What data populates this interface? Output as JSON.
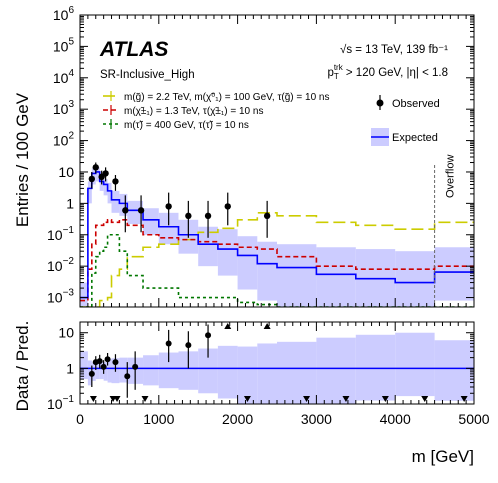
{
  "chart_data": {
    "type": "histogram",
    "xlabel": "m [GeV]",
    "x_ticks": [
      "0",
      "1000",
      "2000",
      "3000",
      "4000",
      "5000"
    ],
    "xlim": [
      0,
      5000
    ],
    "overflow_label": "Overflow",
    "overflow_edge": 4500,
    "bin_edges": [
      0,
      100,
      150,
      200,
      250,
      300,
      350,
      400,
      500,
      600,
      800,
      1000,
      1250,
      1500,
      1750,
      2000,
      2250,
      2500,
      3000,
      3500,
      4000,
      4500,
      5000
    ],
    "top": {
      "ylabel": "Entries / 100 GeV",
      "ylim": [
        0.0005,
        1000000
      ],
      "yscale": "log",
      "y_ticks": [
        {
          "v": 0.001,
          "base": "10",
          "exp": "−3"
        },
        {
          "v": 0.01,
          "base": "10",
          "exp": "−2"
        },
        {
          "v": 0.1,
          "base": "10",
          "exp": "−1"
        },
        {
          "v": 1,
          "base": "1",
          "exp": ""
        },
        {
          "v": 10,
          "base": "10",
          "exp": ""
        },
        {
          "v": 100,
          "base": "10",
          "exp": "2"
        },
        {
          "v": 1000,
          "base": "10",
          "exp": "3"
        },
        {
          "v": 10000,
          "base": "10",
          "exp": "4"
        },
        {
          "v": 100000,
          "base": "10",
          "exp": "5"
        },
        {
          "v": 1000000,
          "base": "10",
          "exp": "6"
        }
      ],
      "expected": [
        0.001,
        3,
        9,
        10,
        5,
        4,
        2.5,
        1.3,
        1,
        0.6,
        0.3,
        0.18,
        0.1,
        0.05,
        0.035,
        0.022,
        0.012,
        0.009,
        0.0055,
        0.004,
        0.003,
        0.0065
      ],
      "expected_band_lo": [
        0.0005,
        1,
        4,
        5,
        2.5,
        1.8,
        1,
        0.5,
        0.4,
        0.22,
        0.1,
        0.05,
        0.025,
        0.01,
        0.005,
        0.0018,
        0.0008,
        0.0005,
        0.0005,
        0.0005,
        0.0005,
        0.0008
      ],
      "expected_band_hi": [
        0.003,
        5,
        13,
        14,
        7.5,
        6,
        4.5,
        2.5,
        2,
        1.2,
        0.7,
        0.5,
        0.3,
        0.18,
        0.15,
        0.09,
        0.06,
        0.05,
        0.04,
        0.035,
        0.03,
        0.04
      ],
      "observed": [
        {
          "x": 150,
          "y": 6,
          "lo": 3,
          "hi": 10
        },
        {
          "x": 200,
          "y": 14,
          "lo": 9,
          "hi": 20
        },
        {
          "x": 275,
          "y": 7,
          "lo": 4,
          "hi": 11
        },
        {
          "x": 325,
          "y": 9,
          "lo": 5,
          "hi": 14
        },
        {
          "x": 450,
          "y": 5,
          "lo": 2.5,
          "hi": 8
        },
        {
          "x": 575,
          "y": 0.6,
          "lo": 0.12,
          "hi": 1.8
        },
        {
          "x": 775,
          "y": 0.6,
          "lo": 0.12,
          "hi": 1.8
        },
        {
          "x": 1125,
          "y": 0.8,
          "lo": 0.2,
          "hi": 2.2
        },
        {
          "x": 1375,
          "y": 0.4,
          "lo": 0.08,
          "hi": 1.2
        },
        {
          "x": 1625,
          "y": 0.4,
          "lo": 0.08,
          "hi": 1.2
        },
        {
          "x": 1875,
          "y": 0.8,
          "lo": 0.2,
          "hi": 2.2
        },
        {
          "x": 2375,
          "y": 0.4,
          "lo": 0.08,
          "hi": 1.2
        }
      ],
      "signals": [
        {
          "name": "m(g̃) = 2.2 TeV, m(χ̃⁰₁) = 100 GeV, τ(g̃) = 10 ns",
          "color": "#cccc00",
          "dash": "12,5",
          "values": [
            0.0005,
            0.0005,
            0.0005,
            0.0005,
            0.0008,
            0.0008,
            0.001,
            0.005,
            0.008,
            0.02,
            0.04,
            0.05,
            0.07,
            0.12,
            0.16,
            0.3,
            0.5,
            0.4,
            0.25,
            0.2,
            0.15,
            0.25
          ]
        },
        {
          "name": "m(χ̃±₁) = 1.3 TeV, τ(χ̃±₁) = 10 ns",
          "color": "#cc0000",
          "dash": "5,3",
          "values": [
            0.0008,
            0.008,
            0.05,
            0.2,
            0.2,
            0.25,
            0.3,
            0.25,
            0.3,
            0.2,
            0.1,
            0.08,
            0.07,
            0.06,
            0.05,
            0.04,
            0.035,
            0.02,
            0.01,
            0.008,
            0.008,
            0.01
          ]
        },
        {
          "name": "m(τ̃) = 400 GeV, τ(τ̃) = 10 ns",
          "color": "#007700",
          "dash": "3,3",
          "values": [
            0.0005,
            0.0005,
            0.006,
            0.02,
            0.03,
            0.04,
            0.1,
            0.1,
            0.03,
            0.005,
            0.002,
            0.002,
            0.001,
            0.001,
            0.001,
            0.0007,
            0.0006,
            0.0005,
            0.0005,
            0.0005,
            0.0005,
            0.0005
          ]
        }
      ]
    },
    "bottom": {
      "ylabel": "Data / Pred.",
      "ylim": [
        0.1,
        20
      ],
      "yscale": "log",
      "y_ticks": [
        {
          "v": 0.1,
          "base": "10",
          "exp": "−1"
        },
        {
          "v": 1,
          "base": "1",
          "exp": ""
        },
        {
          "v": 10,
          "base": "10",
          "exp": ""
        }
      ],
      "ratio_points": [
        {
          "x": 150,
          "y": 0.7,
          "lo": 0.3,
          "hi": 1.2
        },
        {
          "x": 200,
          "y": 1.5,
          "lo": 0.9,
          "hi": 2.2
        },
        {
          "x": 250,
          "y": 1.6,
          "lo": 1.0,
          "hi": 2.4
        },
        {
          "x": 300,
          "y": 1.1,
          "lo": 0.7,
          "hi": 1.7
        },
        {
          "x": 350,
          "y": 1.8,
          "lo": 1.2,
          "hi": 2.7
        },
        {
          "x": 450,
          "y": 1.5,
          "lo": 0.8,
          "hi": 2.5
        },
        {
          "x": 600,
          "y": 0.6,
          "lo": 0.15,
          "hi": 1.5
        },
        {
          "x": 700,
          "y": 1.1,
          "lo": 0.25,
          "hi": 3.0
        },
        {
          "x": 1125,
          "y": 5.0,
          "lo": 1.5,
          "hi": 12
        },
        {
          "x": 1375,
          "y": 4.5,
          "lo": 1.0,
          "hi": 11
        },
        {
          "x": 1625,
          "y": 8.5,
          "lo": 2.0,
          "hi": 17
        }
      ],
      "up_arrows_x": [
        1875,
        2375
      ],
      "down_arrows_x": [
        170,
        420,
        470,
        825,
        2125,
        2875,
        3375,
        3875,
        4375,
        4875
      ]
    },
    "legend": {
      "observed_label": "Observed",
      "expected_label": "Expected"
    },
    "text": {
      "experiment": "ATLAS",
      "region": "SR-Inclusive_High",
      "energy_line": "√s = 13 TeV,  139 fb⁻¹",
      "cut_line": "p_T^trk > 120 GeV, |η| < 1.8"
    },
    "colors": {
      "expected_line": "#0000ff",
      "band": "#ccccff",
      "observed": "#000000"
    }
  }
}
